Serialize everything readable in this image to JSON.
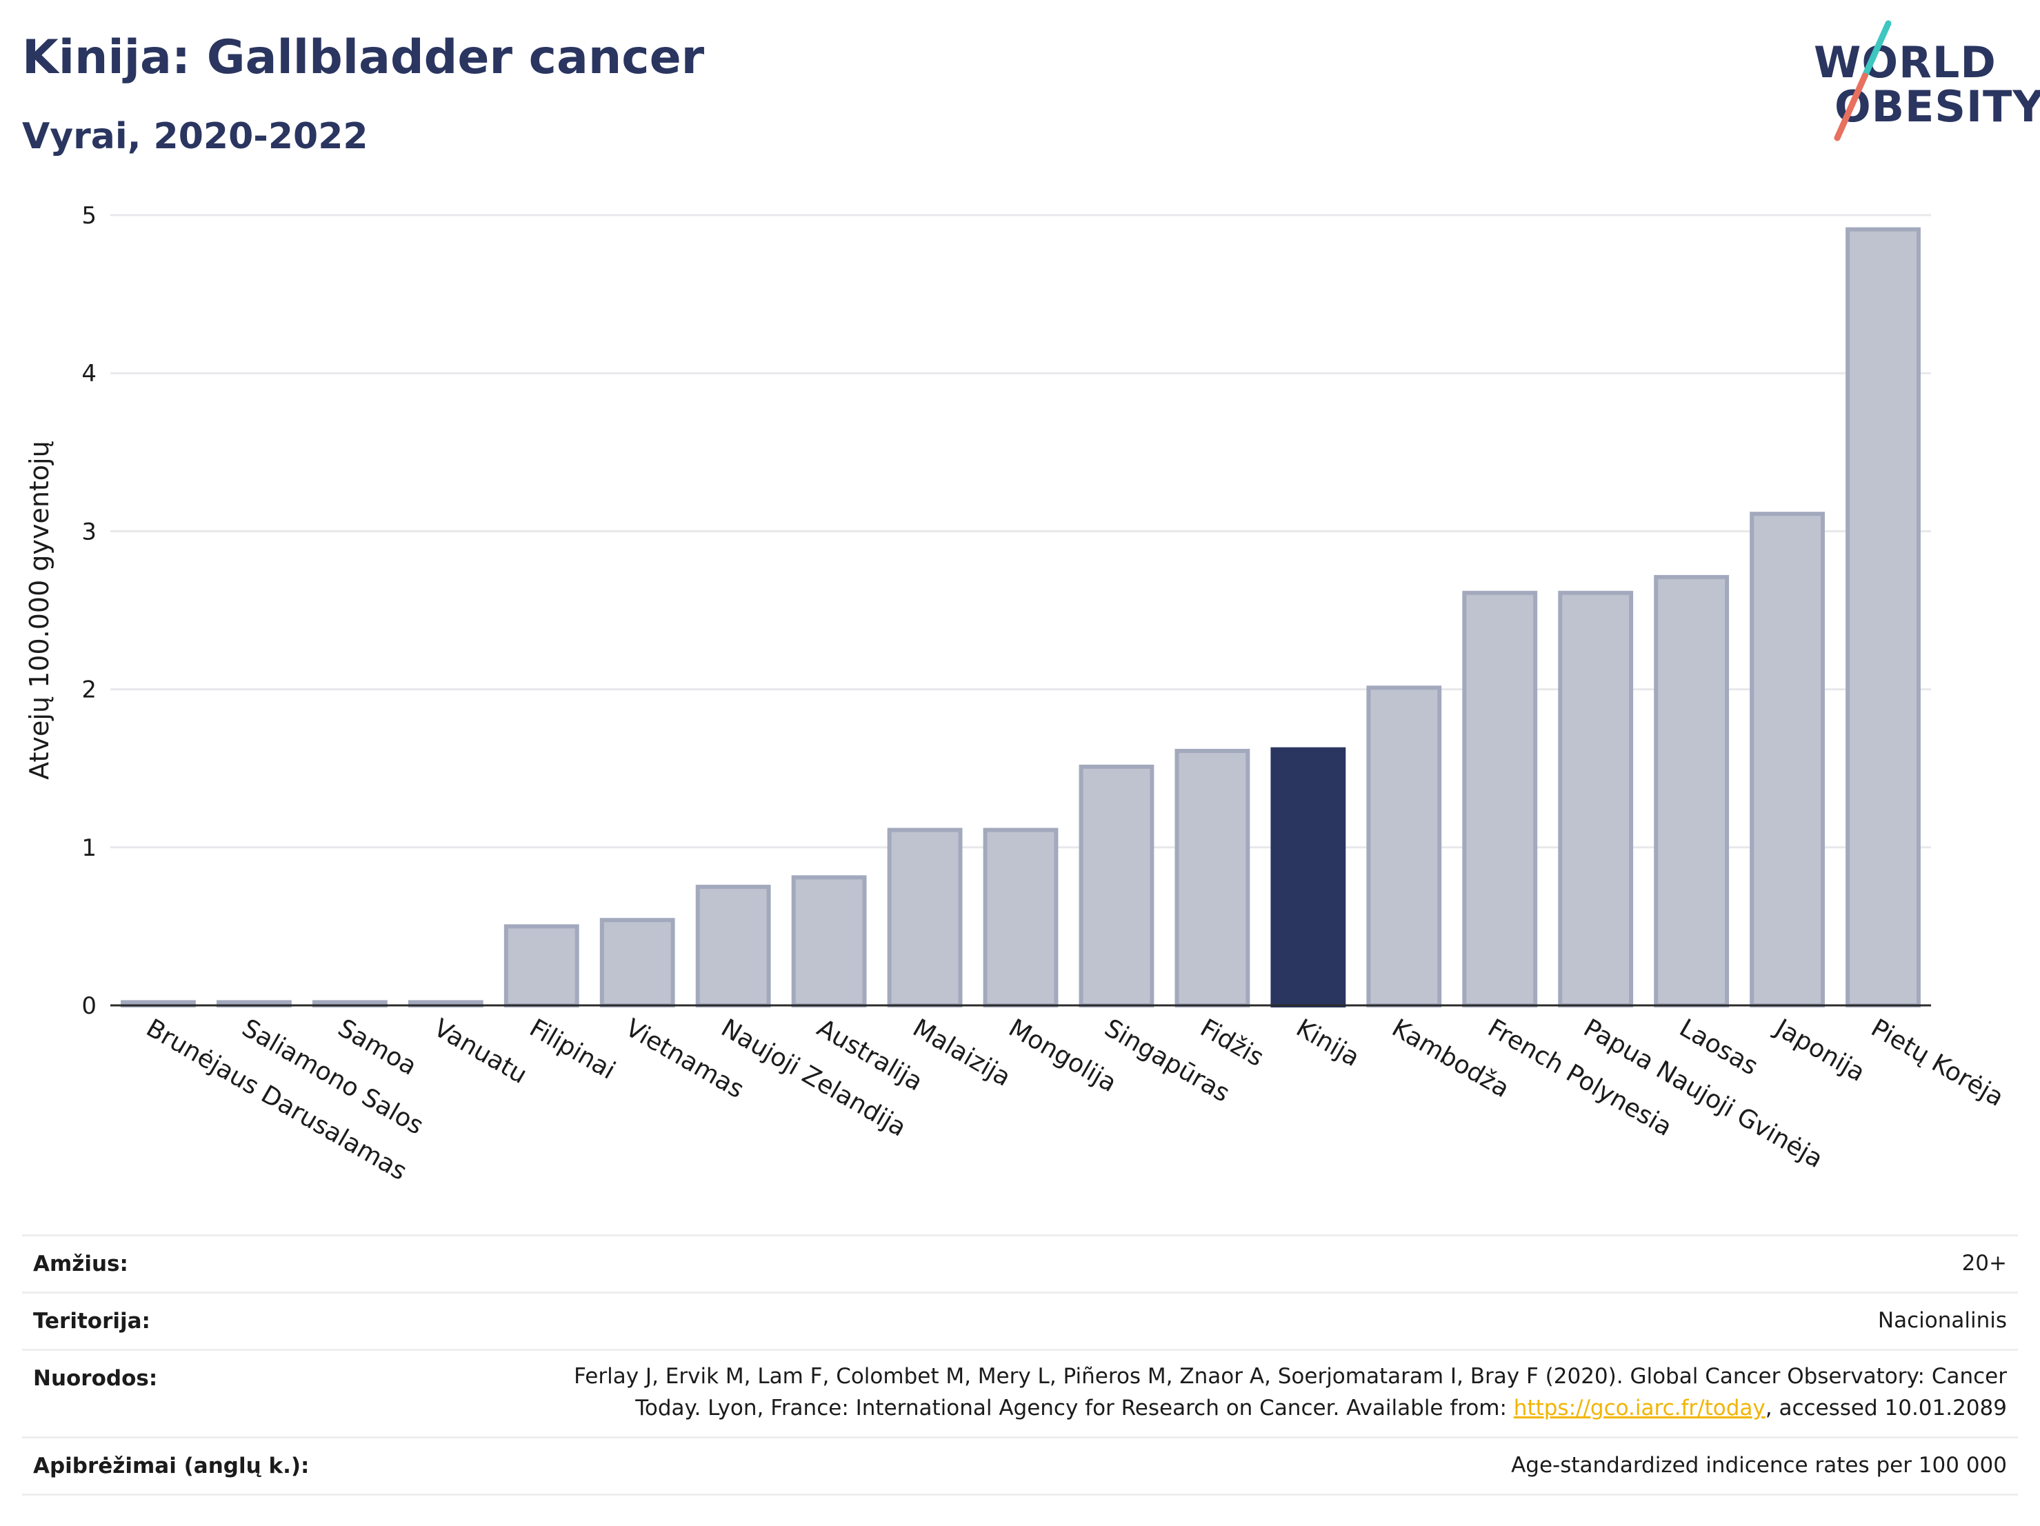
{
  "header": {
    "title": "Kinija: Gallbladder cancer",
    "subtitle": "Vyrai, 2020-2022"
  },
  "logo": {
    "line1": "WORLD",
    "line2": "OBESITY",
    "accent_colors": [
      "#3ec6c1",
      "#e8705f"
    ]
  },
  "chart_data": {
    "type": "bar",
    "ylabel": "Atvejų 100.000 gyventojų",
    "ylim": [
      0,
      5
    ],
    "yticks": [
      0,
      1,
      2,
      3,
      4,
      5
    ],
    "grid": true,
    "highlight": "Kinija",
    "colors": {
      "bar": "#bfc3cf",
      "bar_edge": "#a3a9bd",
      "highlight": "#2a3560"
    },
    "categories": [
      "Brunėjaus Darusalamas",
      "Saliamono Salos",
      "Samoa",
      "Vanuatu",
      "Filipinai",
      "Vietnamas",
      "Naujoji Zelandija",
      "Australija",
      "Malaizija",
      "Mongolija",
      "Singapūras",
      "Fidžis",
      "Kinija",
      "Kambodža",
      "French Polynesia",
      "Papua Naujoji Gvinėja",
      "Laosas",
      "Japonija",
      "Pietų Korėja"
    ],
    "values": [
      0.02,
      0.02,
      0.02,
      0.02,
      0.5,
      0.54,
      0.75,
      0.81,
      1.11,
      1.11,
      1.51,
      1.61,
      1.62,
      2.01,
      2.61,
      2.61,
      2.71,
      3.11,
      4.91
    ]
  },
  "meta": {
    "age_label": "Amžius:",
    "age_value": "20+",
    "territory_label": "Teritorija:",
    "territory_value": "Nacionalinis",
    "refs_label": "Nuorodos:",
    "refs_line1": "Ferlay J, Ervik M, Lam F, Colombet M, Mery L, Piñeros M, Znaor A, Soerjomataram I, Bray F (2020). Global Cancer Observatory: Cancer",
    "refs_line2_pre": "Today. Lyon, France: International Agency for Research on Cancer. Available from: ",
    "refs_link": "https://gco.iarc.fr/today",
    "refs_line2_post": ", accessed 10.01.2089",
    "defs_label": "Apibrėžimai (anglų k.):",
    "defs_value": "Age-standardized indicence rates per 100 000"
  }
}
